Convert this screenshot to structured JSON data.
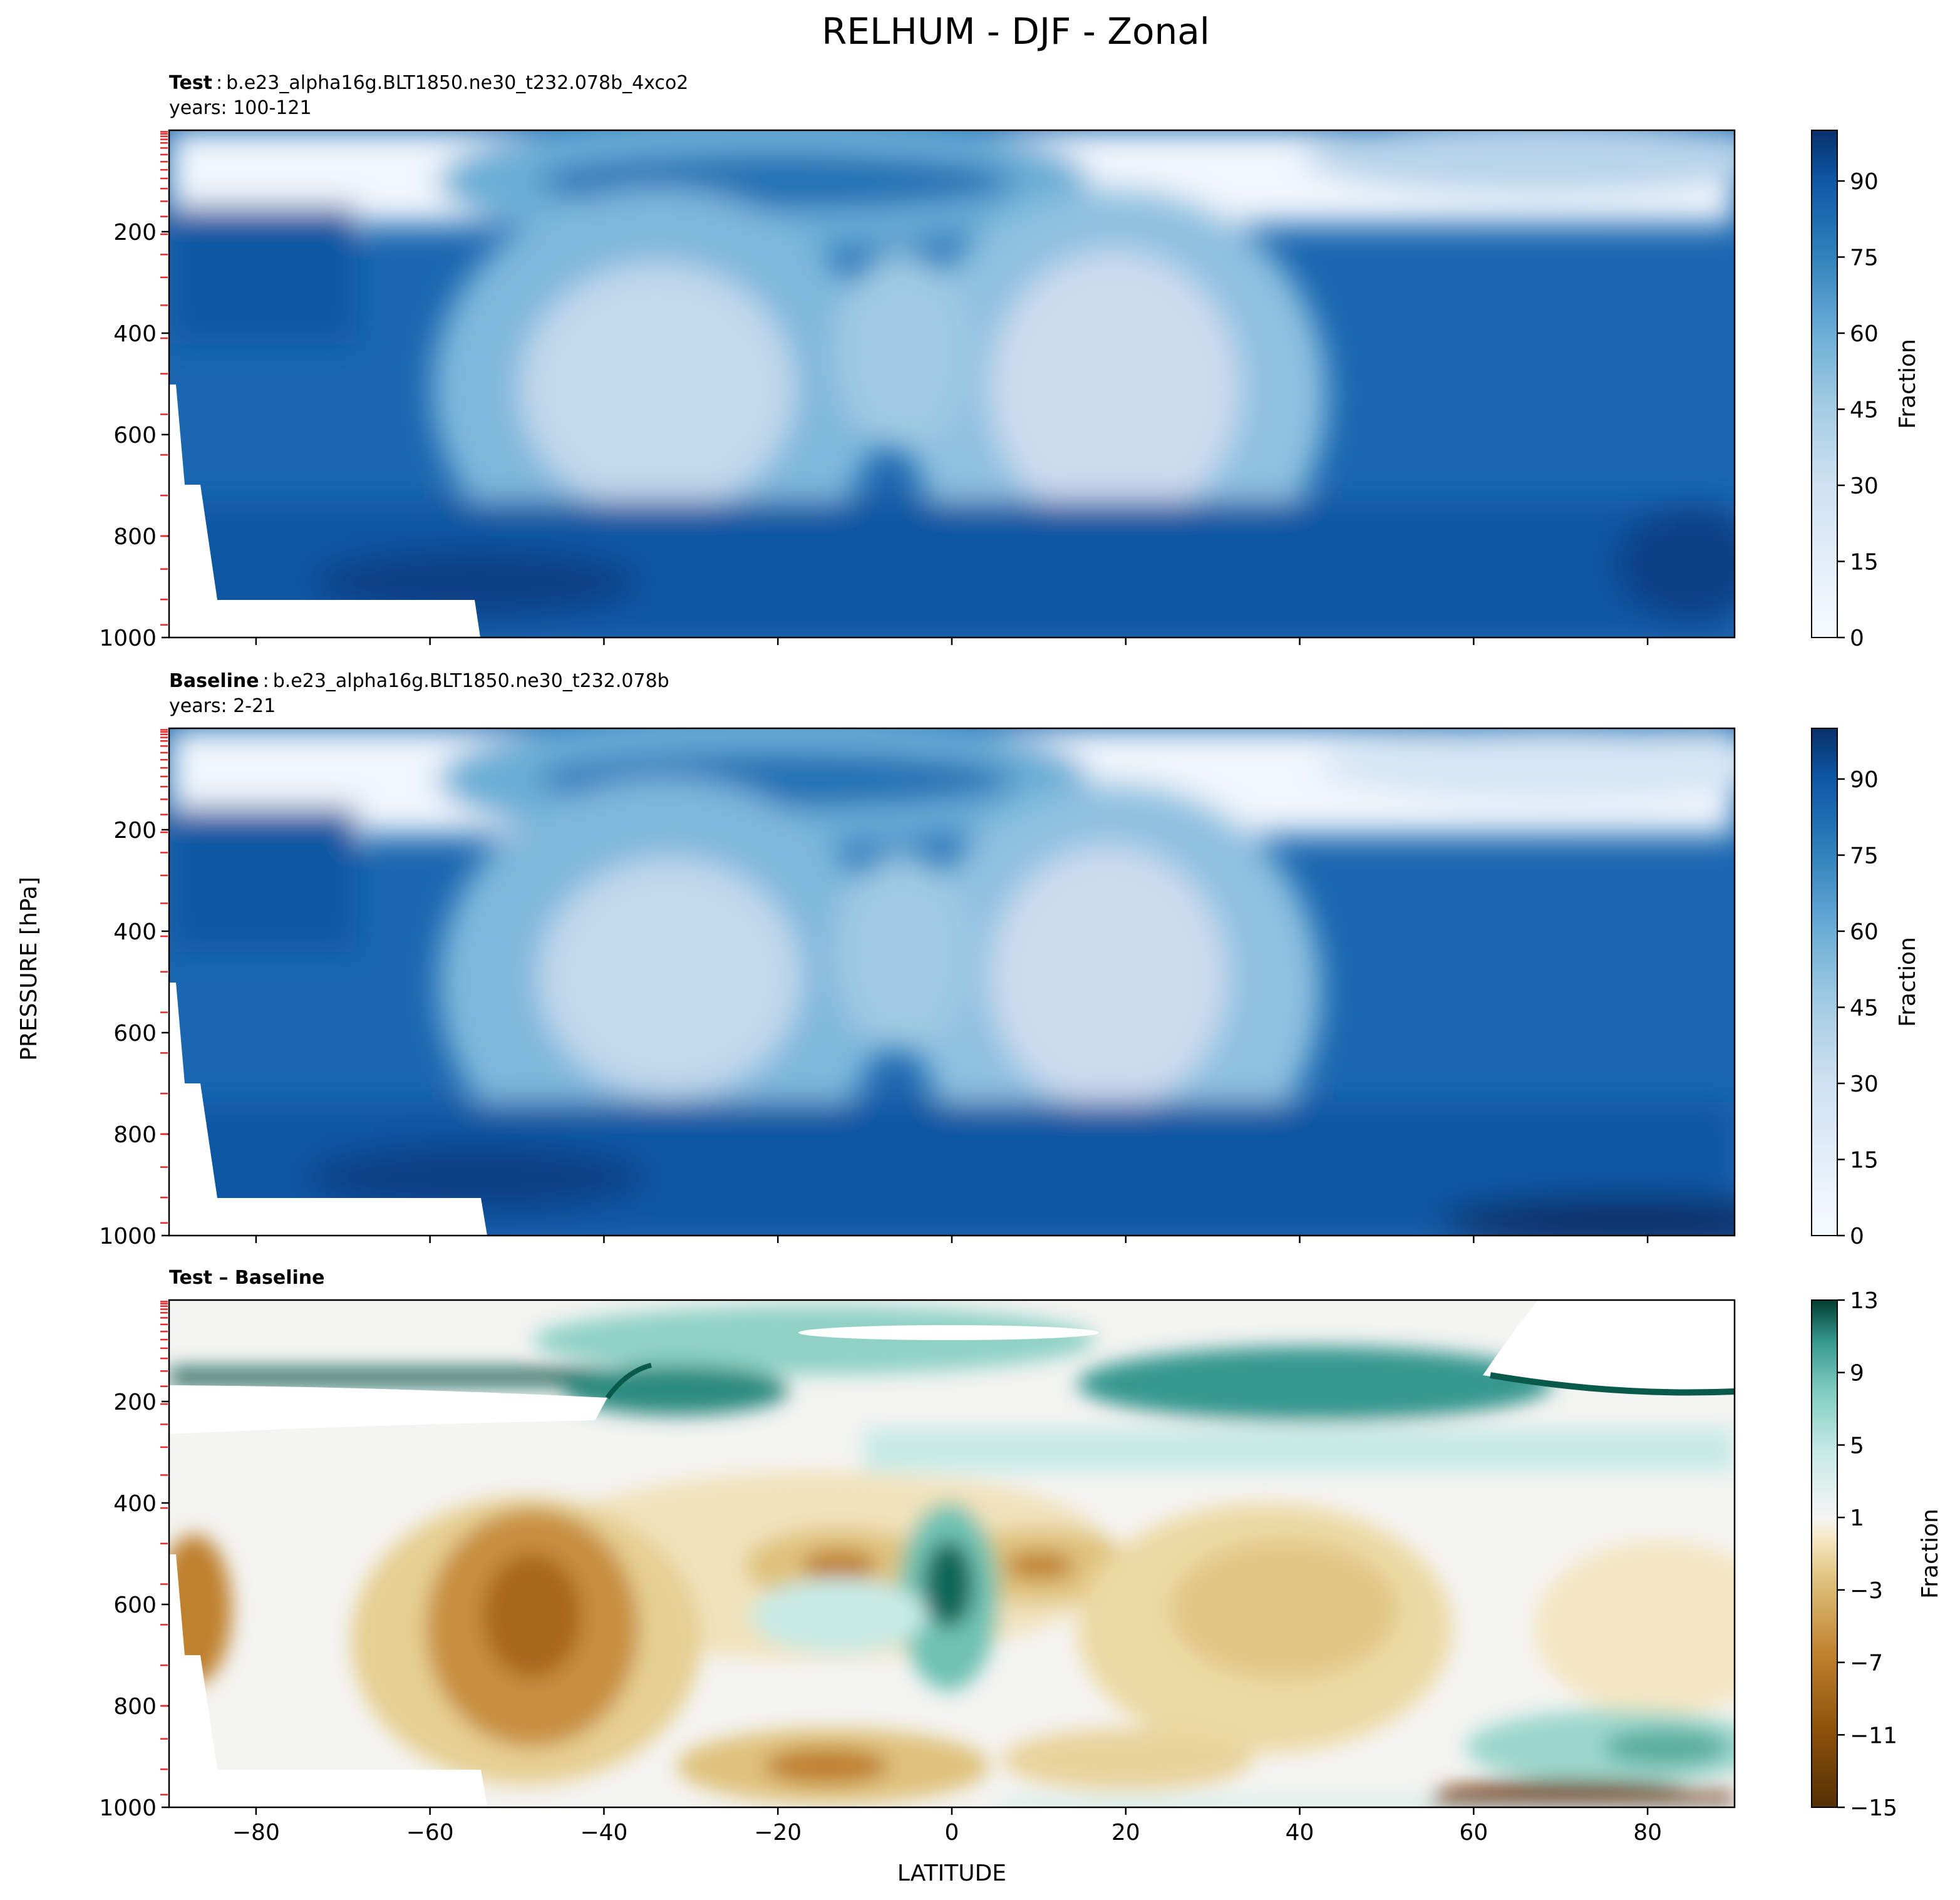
{
  "chart_data": {
    "type": "heatmap",
    "title": "RELHUM - DJF - Zonal",
    "xlabel": "LATITUDE",
    "ylabel": "PRESSURE [hPa]",
    "xlim": [
      -90,
      90
    ],
    "ylim": [
      1000,
      0
    ],
    "x_ticks": [
      "−80",
      "−60",
      "−40",
      "−20",
      "0",
      "20",
      "40",
      "60",
      "80"
    ],
    "y_ticks": [
      "200",
      "400",
      "600",
      "800",
      "1000"
    ],
    "panels": [
      {
        "id": "test",
        "title_bold": "Test",
        "title_sep": ":",
        "case": "b.e23_alpha16g.BLT1850.ne30_t232.078b_4xco2",
        "years": "years: 100-121",
        "colorbar": {
          "label": "Fraction",
          "ticks": [
            "0",
            "15",
            "30",
            "45",
            "60",
            "75",
            "90"
          ],
          "range": [
            0,
            100
          ],
          "palette": "Blues"
        }
      },
      {
        "id": "baseline",
        "title_bold": "Baseline",
        "title_sep": ":",
        "case": "b.e23_alpha16g.BLT1850.ne30_t232.078b",
        "years": "years: 2-21",
        "colorbar": {
          "label": "Fraction",
          "ticks": [
            "0",
            "15",
            "30",
            "45",
            "60",
            "75",
            "90"
          ],
          "range": [
            0,
            100
          ],
          "palette": "Blues"
        }
      },
      {
        "id": "diff",
        "title_bold": "Test – Baseline",
        "colorbar": {
          "label": "Fraction",
          "ticks": [
            "13",
            "9",
            "5",
            "1",
            "−3",
            "−7",
            "−11",
            "−15"
          ],
          "range": [
            -15,
            13
          ],
          "palette": "BrBG"
        }
      }
    ]
  }
}
